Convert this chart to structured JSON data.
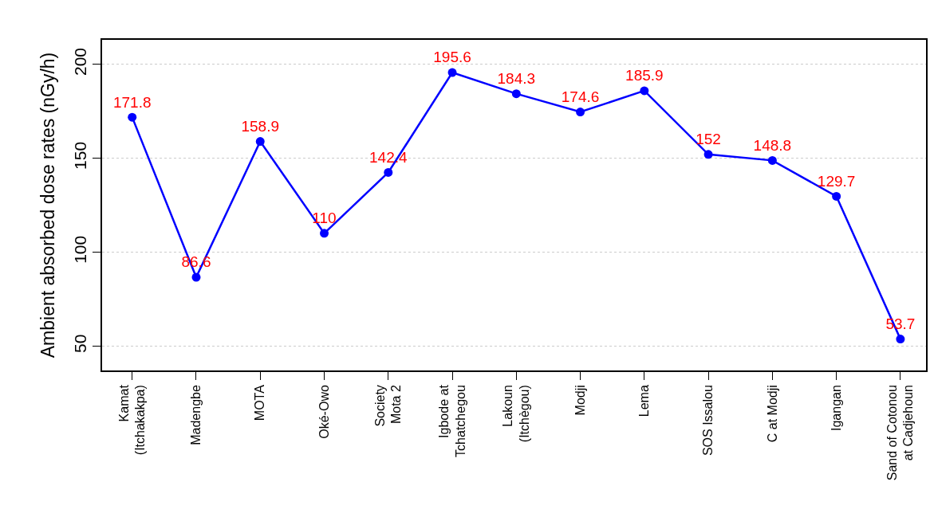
{
  "chart_data": {
    "type": "line",
    "ylabel": "Ambient absorbed dose rates (nGy/h)",
    "categories": [
      "Kamat\n(Itchakakpa)",
      "Madengbe",
      "MOTA",
      "Oké-Owo",
      "Society\nMota 2",
      "Igbode at\nTchatchegou",
      "Lakoun\n(Itchègou)",
      "Modji",
      "Lema",
      "SOS Issalou",
      "C at Modji",
      "Igangan",
      "Sand of Cotonou\nat Cadjehoun"
    ],
    "series": [
      {
        "color": "#0000ff",
        "values": [
          171.8,
          86.6,
          158.9,
          110,
          142.4,
          195.6,
          184.3,
          174.6,
          185.9,
          152,
          148.8,
          129.7,
          53.7
        ]
      }
    ],
    "data_labels": true,
    "ylim": [
      37,
      213
    ],
    "yticks": [
      50,
      100,
      150,
      200
    ],
    "grid": "y",
    "marker": "circle",
    "line_style": "solid"
  }
}
